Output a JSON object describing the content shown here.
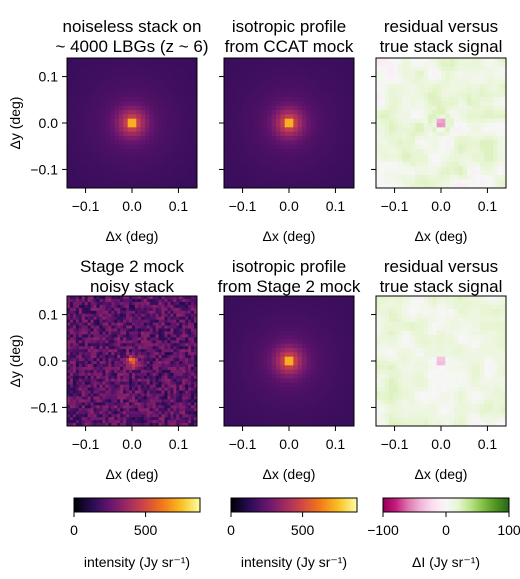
{
  "figure": {
    "rows": [
      {
        "panels": [
          {
            "title_lines": [
              "noiseless stack on",
              "~ 4000 LBGs (z ~ 6)"
            ],
            "map": "smooth",
            "cmap": "inferno",
            "xlabel": "Δx (deg)",
            "ylabel": "Δy (deg)"
          },
          {
            "title_lines": [
              "isotropic profile",
              "from CCAT mock"
            ],
            "map": "smooth",
            "cmap": "inferno",
            "xlabel": "Δx (deg)",
            "ylabel": ""
          },
          {
            "title_lines": [
              "residual versus",
              "true stack signal"
            ],
            "map": "residual",
            "cmap": "PiYG",
            "xlabel": "Δx (deg)",
            "ylabel": ""
          }
        ]
      },
      {
        "panels": [
          {
            "title_lines": [
              "Stage 2 mock",
              "noisy stack"
            ],
            "map": "noisy",
            "cmap": "inferno",
            "xlabel": "Δx (deg)",
            "ylabel": "Δy (deg)"
          },
          {
            "title_lines": [
              "isotropic profile",
              "from Stage 2 mock"
            ],
            "map": "smooth",
            "cmap": "inferno",
            "xlabel": "Δx (deg)",
            "ylabel": ""
          },
          {
            "title_lines": [
              "residual versus",
              "true stack signal"
            ],
            "map": "residual_faint",
            "cmap": "PiYG",
            "xlabel": "Δx (deg)",
            "ylabel": ""
          }
        ]
      }
    ],
    "xticks": [
      "−0.1",
      "0.0",
      "0.1"
    ],
    "yticks": [
      "0.1",
      "0.0",
      "−0.1"
    ],
    "colorbars": [
      {
        "cmap": "inferno",
        "ticks": [
          "0",
          "500"
        ],
        "tick_values": [
          0,
          500
        ],
        "range": [
          0,
          880
        ],
        "label": "intensity (Jy sr⁻¹)"
      },
      {
        "cmap": "inferno",
        "ticks": [
          "0",
          "500"
        ],
        "tick_values": [
          0,
          500
        ],
        "range": [
          0,
          880
        ],
        "label": "intensity (Jy sr⁻¹)"
      },
      {
        "cmap": "PiYG",
        "ticks": [
          "−100",
          "0",
          "100"
        ],
        "tick_values": [
          -100,
          0,
          100
        ],
        "range": [
          -100,
          100
        ],
        "label": "ΔI (Jy sr⁻¹)"
      }
    ]
  },
  "chart_data": [
    {
      "type": "heatmap",
      "title": "noiseless stack on ~ 4000 LBGs (z ~ 6)",
      "xlabel": "Δx (deg)",
      "ylabel": "Δy (deg)",
      "xlim": [
        -0.14,
        0.14
      ],
      "ylim": [
        -0.14,
        0.14
      ],
      "peak_at": [
        0.0,
        0.0
      ],
      "colorbar_range": [
        0,
        880
      ]
    },
    {
      "type": "heatmap",
      "title": "isotropic profile from CCAT mock",
      "xlabel": "Δx (deg)",
      "xlim": [
        -0.14,
        0.14
      ],
      "ylim": [
        -0.14,
        0.14
      ],
      "peak_at": [
        0.0,
        0.0
      ],
      "colorbar_range": [
        0,
        880
      ]
    },
    {
      "type": "heatmap",
      "title": "residual versus true stack signal",
      "xlabel": "Δx (deg)",
      "xlim": [
        -0.14,
        0.14
      ],
      "ylim": [
        -0.14,
        0.14
      ],
      "colorbar_range": [
        -100,
        100
      ]
    },
    {
      "type": "heatmap",
      "title": "Stage 2 mock noisy stack",
      "xlabel": "Δx (deg)",
      "ylabel": "Δy (deg)",
      "xlim": [
        -0.14,
        0.14
      ],
      "ylim": [
        -0.14,
        0.14
      ],
      "peak_at": [
        0.0,
        0.0
      ],
      "colorbar_range": [
        0,
        880
      ]
    },
    {
      "type": "heatmap",
      "title": "isotropic profile from Stage 2 mock",
      "xlabel": "Δx (deg)",
      "xlim": [
        -0.14,
        0.14
      ],
      "ylim": [
        -0.14,
        0.14
      ],
      "peak_at": [
        0.0,
        0.0
      ],
      "colorbar_range": [
        0,
        880
      ]
    },
    {
      "type": "heatmap",
      "title": "residual versus true stack signal",
      "xlabel": "Δx (deg)",
      "xlim": [
        -0.14,
        0.14
      ],
      "ylim": [
        -0.14,
        0.14
      ],
      "colorbar_range": [
        -100,
        100
      ]
    }
  ]
}
